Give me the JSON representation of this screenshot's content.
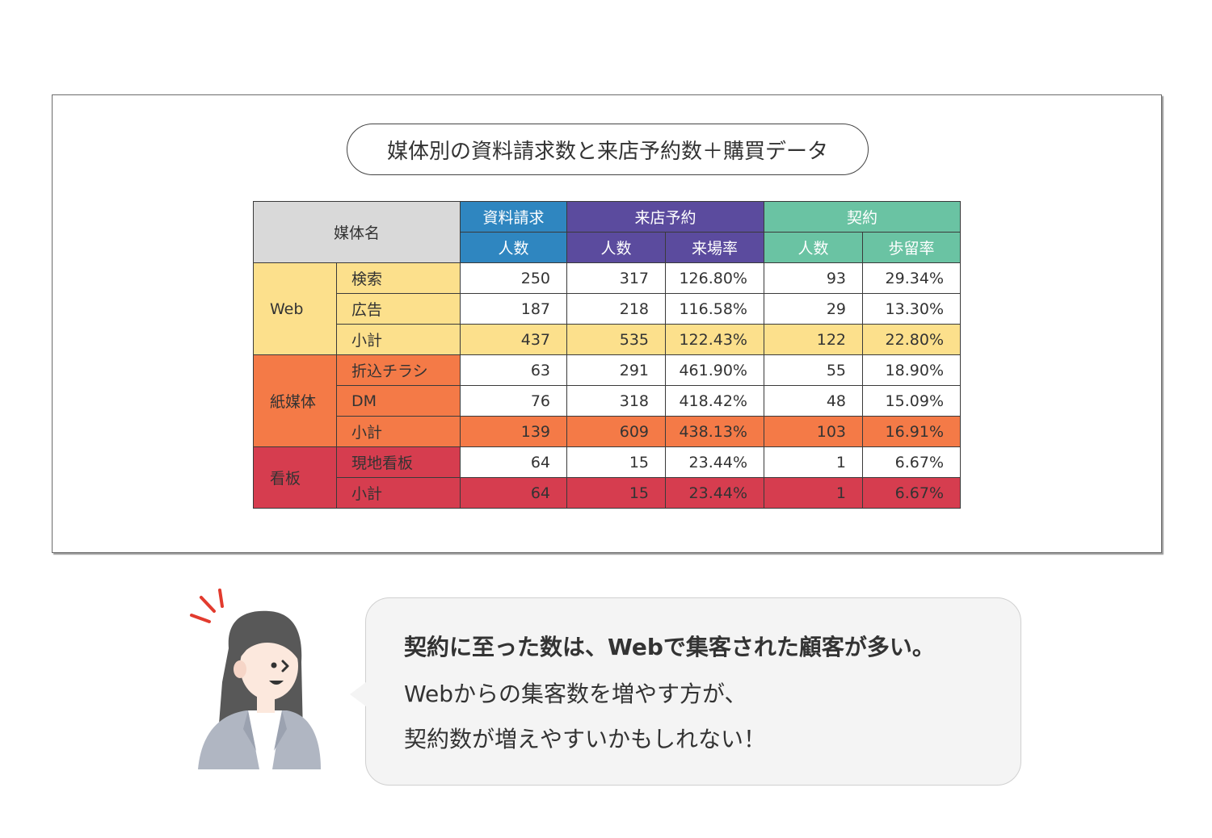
{
  "title": "媒体別の資料請求数と来店予約数＋購買データ",
  "table": {
    "media_header": "媒体名",
    "groups": {
      "request": "資料請求",
      "visit": "来店予約",
      "contract": "契約"
    },
    "subheaders": {
      "request_count": "人数",
      "visit_count": "人数",
      "visit_rate": "来場率",
      "contract_count": "人数",
      "contract_rate": "歩留率"
    },
    "sections": [
      {
        "group": "Web",
        "color": "#fce08c",
        "rows": [
          {
            "label": "検索",
            "request": "250",
            "visit": "317",
            "visit_rate": "126.80%",
            "contract": "93",
            "rate": "29.34%"
          },
          {
            "label": "広告",
            "request": "187",
            "visit": "218",
            "visit_rate": "116.58%",
            "contract": "29",
            "rate": "13.30%"
          },
          {
            "label": "小計",
            "request": "437",
            "visit": "535",
            "visit_rate": "122.43%",
            "contract": "122",
            "rate": "22.80%"
          }
        ]
      },
      {
        "group": "紙媒体",
        "color": "#f47a47",
        "rows": [
          {
            "label": "折込チラシ",
            "request": "63",
            "visit": "291",
            "visit_rate": "461.90%",
            "contract": "55",
            "rate": "18.90%"
          },
          {
            "label": "DM",
            "request": "76",
            "visit": "318",
            "visit_rate": "418.42%",
            "contract": "48",
            "rate": "15.09%"
          },
          {
            "label": "小計",
            "request": "139",
            "visit": "609",
            "visit_rate": "438.13%",
            "contract": "103",
            "rate": "16.91%"
          }
        ]
      },
      {
        "group": "看板",
        "color": "#d63d4f",
        "rows": [
          {
            "label": "現地看板",
            "request": "64",
            "visit": "15",
            "visit_rate": "23.44%",
            "contract": "1",
            "rate": "6.67%"
          },
          {
            "label": "小計",
            "request": "64",
            "visit": "15",
            "visit_rate": "23.44%",
            "contract": "1",
            "rate": "6.67%"
          }
        ]
      }
    ]
  },
  "speech": {
    "line1": "契約に至った数は、Webで集客された顧客が多い。",
    "line2": "Webからの集客数を増やす方が、",
    "line3": "契約数が増えやすいかもしれない！"
  },
  "colors": {
    "request": "#2f86c0",
    "visit": "#5b4b9e",
    "contract": "#6ac3a3"
  }
}
